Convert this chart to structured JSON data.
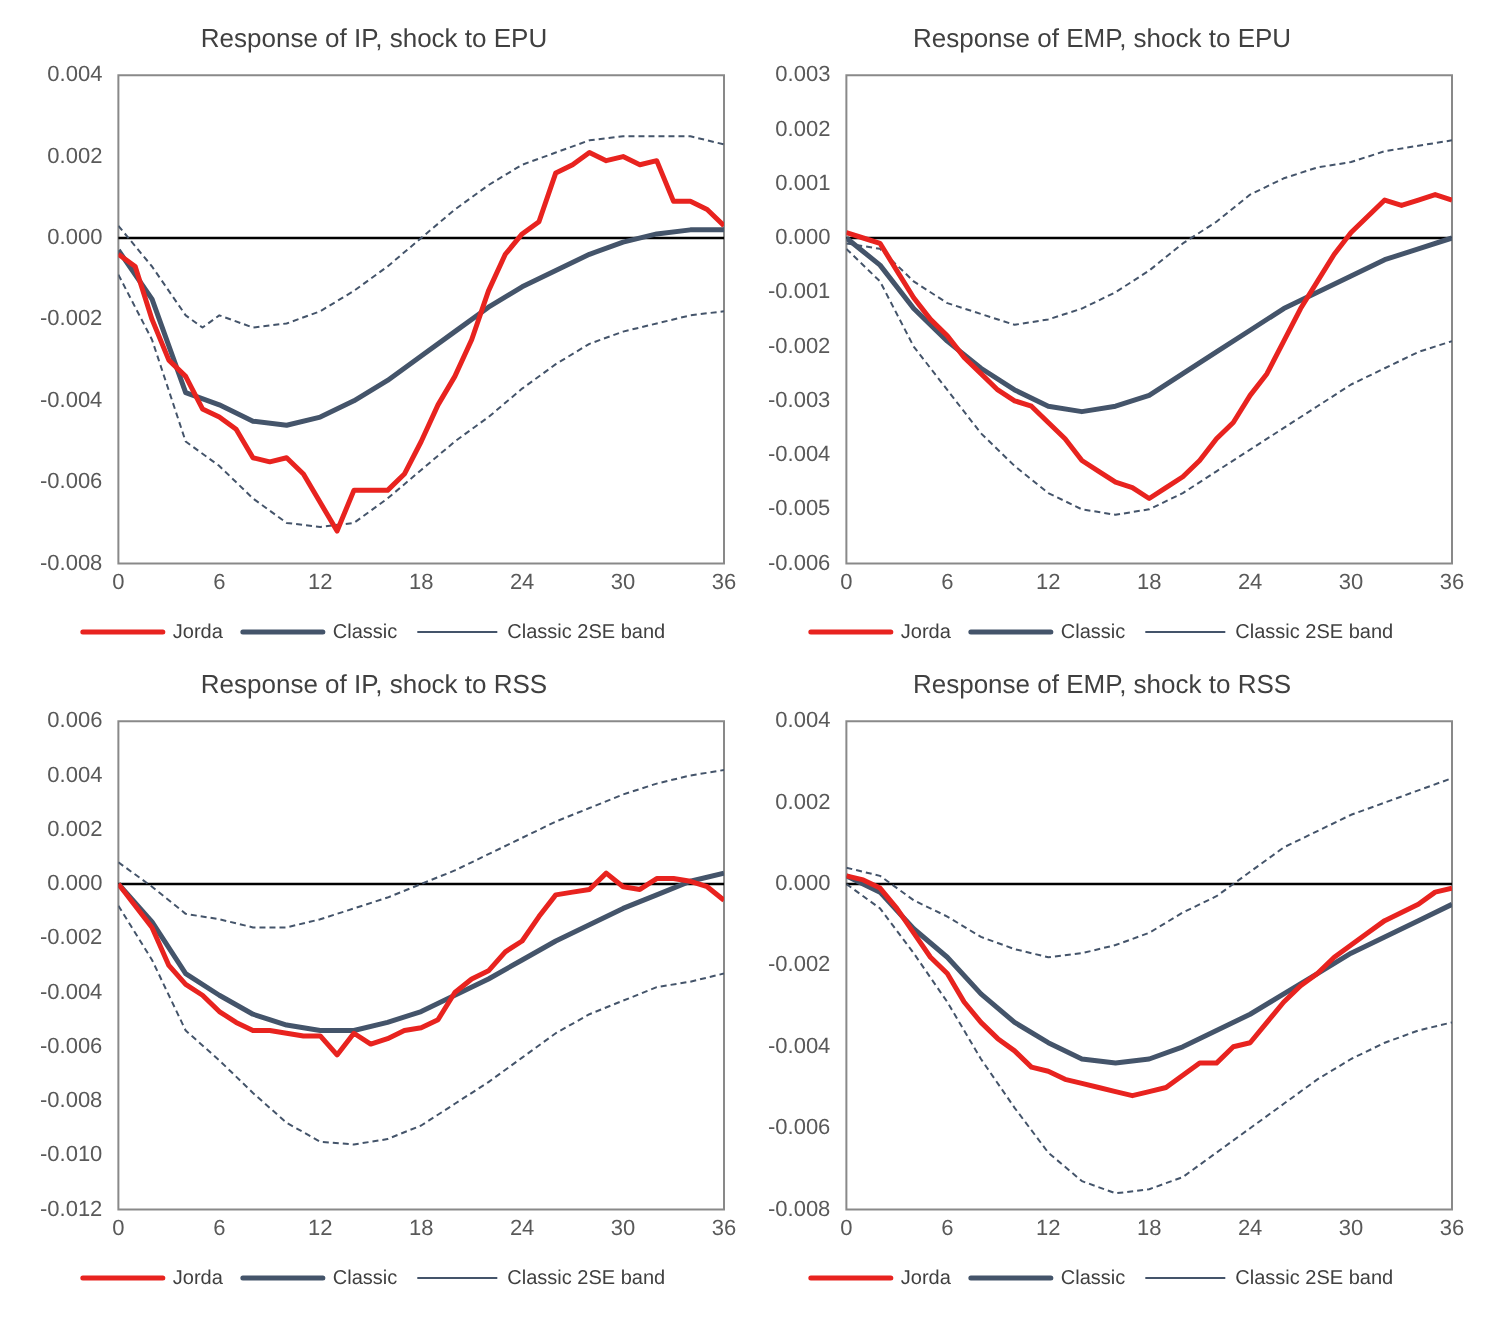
{
  "chart_data": [
    {
      "type": "line",
      "title": "Response of IP, shock to EPU",
      "xlim": [
        0,
        36
      ],
      "xticks": [
        0,
        6,
        12,
        18,
        24,
        30,
        36
      ],
      "ylim": [
        -0.008,
        0.004
      ],
      "yticks": [
        {
          "value": -0.008,
          "label": "-0.008"
        },
        {
          "value": -0.006,
          "label": "-0.006"
        },
        {
          "value": -0.004,
          "label": "-0.004"
        },
        {
          "value": -0.002,
          "label": "-0.002"
        },
        {
          "value": 0,
          "label": "0.000"
        },
        {
          "value": 0.002,
          "label": "0.002"
        },
        {
          "value": 0.004,
          "label": "0.004"
        }
      ],
      "legend": "bottom",
      "grid": false,
      "ref_lines": [
        {
          "axis": "y",
          "value": 0,
          "color": "#000000"
        }
      ],
      "series": [
        {
          "name": "Jorda",
          "color": "#e8231f",
          "line_style": "solid",
          "x": [
            0,
            1,
            2,
            3,
            4,
            5,
            6,
            7,
            8,
            9,
            10,
            11,
            12,
            13,
            14,
            15,
            16,
            17,
            18,
            19,
            20,
            21,
            22,
            23,
            24,
            25,
            26,
            27,
            28,
            29,
            30,
            31,
            32,
            33,
            34,
            35,
            36
          ],
          "values": [
            -0.0004,
            -0.0007,
            -0.002,
            -0.003,
            -0.0034,
            -0.0042,
            -0.0044,
            -0.0047,
            -0.0054,
            -0.0055,
            -0.0054,
            -0.0058,
            -0.0065,
            -0.0072,
            -0.0062,
            -0.0062,
            -0.0062,
            -0.0058,
            -0.005,
            -0.0041,
            -0.0034,
            -0.0025,
            -0.0013,
            -0.0004,
            0.0001,
            0.0004,
            0.0016,
            0.0018,
            0.0021,
            0.0019,
            0.002,
            0.0018,
            0.0019,
            0.0009,
            0.0009,
            0.0007,
            0.0003
          ]
        },
        {
          "name": "Classic",
          "color": "#44546a",
          "line_style": "solid",
          "x": [
            0,
            2,
            4,
            6,
            8,
            10,
            12,
            14,
            16,
            18,
            20,
            22,
            24,
            26,
            28,
            30,
            32,
            34,
            36
          ],
          "values": [
            -0.0003,
            -0.0015,
            -0.0038,
            -0.0041,
            -0.0045,
            -0.0046,
            -0.0044,
            -0.004,
            -0.0035,
            -0.0029,
            -0.0023,
            -0.0017,
            -0.0012,
            -0.0008,
            -0.0004,
            -0.0001,
            0.0001,
            0.0002,
            0.0002
          ]
        },
        {
          "name": "Classic 2SE band",
          "color": "#44546a",
          "line_style": "dashed",
          "x": [
            0,
            2,
            4,
            5,
            6,
            8,
            10,
            12,
            14,
            16,
            18,
            20,
            22,
            24,
            26,
            28,
            30,
            32,
            34,
            36
          ],
          "values": [
            0.0003,
            -0.0007,
            -0.0019,
            -0.0022,
            -0.0019,
            -0.0022,
            -0.0021,
            -0.0018,
            -0.0013,
            -0.0007,
            0,
            0.0007,
            0.0013,
            0.0018,
            0.0021,
            0.0024,
            0.0025,
            0.0025,
            0.0025,
            0.0023
          ]
        },
        {
          "color": "#44546a",
          "line_style": "dashed",
          "x": [
            0,
            2,
            4,
            6,
            8,
            10,
            12,
            14,
            16,
            18,
            20,
            22,
            24,
            26,
            28,
            30,
            32,
            34,
            36
          ],
          "values": [
            -0.0009,
            -0.0025,
            -0.005,
            -0.0056,
            -0.0064,
            -0.007,
            -0.0071,
            -0.007,
            -0.0064,
            -0.0057,
            -0.005,
            -0.0044,
            -0.0037,
            -0.0031,
            -0.0026,
            -0.0023,
            -0.0021,
            -0.0019,
            -0.0018
          ]
        }
      ]
    },
    {
      "type": "line",
      "title": "Response of EMP, shock to EPU",
      "xlim": [
        0,
        36
      ],
      "xticks": [
        0,
        6,
        12,
        18,
        24,
        30,
        36
      ],
      "ylim": [
        -0.006,
        0.003
      ],
      "yticks": [
        {
          "value": -0.006,
          "label": "-0.006"
        },
        {
          "value": -0.005,
          "label": "-0.005"
        },
        {
          "value": -0.004,
          "label": "-0.004"
        },
        {
          "value": -0.003,
          "label": "-0.003"
        },
        {
          "value": -0.002,
          "label": "-0.002"
        },
        {
          "value": -0.001,
          "label": "-0.001"
        },
        {
          "value": 0,
          "label": "0.000"
        },
        {
          "value": 0.001,
          "label": "0.001"
        },
        {
          "value": 0.002,
          "label": "0.002"
        },
        {
          "value": 0.003,
          "label": "0.003"
        }
      ],
      "legend": "bottom",
      "grid": false,
      "ref_lines": [
        {
          "axis": "y",
          "value": 0,
          "color": "#000000"
        }
      ],
      "series": [
        {
          "name": "Jorda",
          "color": "#e8231f",
          "line_style": "solid",
          "x": [
            0,
            1,
            2,
            3,
            4,
            5,
            6,
            7,
            8,
            9,
            10,
            11,
            12,
            13,
            14,
            15,
            16,
            17,
            18,
            19,
            20,
            21,
            22,
            23,
            24,
            25,
            26,
            27,
            28,
            29,
            30,
            31,
            32,
            33,
            34,
            35,
            36
          ],
          "values": [
            0.0001,
            0,
            -0.0001,
            -0.0006,
            -0.0011,
            -0.0015,
            -0.0018,
            -0.0022,
            -0.0025,
            -0.0028,
            -0.003,
            -0.0031,
            -0.0034,
            -0.0037,
            -0.0041,
            -0.0043,
            -0.0045,
            -0.0046,
            -0.0048,
            -0.0046,
            -0.0044,
            -0.0041,
            -0.0037,
            -0.0034,
            -0.0029,
            -0.0025,
            -0.0019,
            -0.0013,
            -0.0008,
            -0.0003,
            0.0001,
            0.0004,
            0.0007,
            0.0006,
            0.0007,
            0.0008,
            0.0007
          ]
        },
        {
          "name": "Classic",
          "color": "#44546a",
          "line_style": "solid",
          "x": [
            0,
            2,
            4,
            6,
            8,
            10,
            12,
            14,
            16,
            18,
            20,
            22,
            24,
            26,
            28,
            30,
            32,
            34,
            36
          ],
          "values": [
            0,
            -0.0005,
            -0.0013,
            -0.0019,
            -0.0024,
            -0.0028,
            -0.0031,
            -0.0032,
            -0.0031,
            -0.0029,
            -0.0025,
            -0.0021,
            -0.0017,
            -0.0013,
            -0.001,
            -0.0007,
            -0.0004,
            -0.0002,
            0
          ]
        },
        {
          "name": "Classic 2SE band",
          "color": "#44546a",
          "line_style": "dashed",
          "x": [
            0,
            2,
            4,
            6,
            8,
            10,
            12,
            14,
            16,
            18,
            20,
            22,
            24,
            26,
            28,
            30,
            32,
            34,
            36
          ],
          "values": [
            -0.0001,
            -0.0002,
            -0.0008,
            -0.0012,
            -0.0014,
            -0.0016,
            -0.0015,
            -0.0013,
            -0.001,
            -0.0006,
            -0.0001,
            0.0003,
            0.0008,
            0.0011,
            0.0013,
            0.0014,
            0.0016,
            0.0017,
            0.0018
          ]
        },
        {
          "color": "#44546a",
          "line_style": "dashed",
          "x": [
            0,
            2,
            4,
            6,
            8,
            10,
            12,
            14,
            16,
            18,
            20,
            22,
            24,
            26,
            28,
            30,
            32,
            34,
            36
          ],
          "values": [
            -0.0002,
            -0.0008,
            -0.002,
            -0.0028,
            -0.0036,
            -0.0042,
            -0.0047,
            -0.005,
            -0.0051,
            -0.005,
            -0.0047,
            -0.0043,
            -0.0039,
            -0.0035,
            -0.0031,
            -0.0027,
            -0.0024,
            -0.0021,
            -0.0019
          ]
        }
      ]
    },
    {
      "type": "line",
      "title": "Response of IP, shock to RSS",
      "xlim": [
        0,
        36
      ],
      "xticks": [
        0,
        6,
        12,
        18,
        24,
        30,
        36
      ],
      "ylim": [
        -0.012,
        0.006
      ],
      "yticks": [
        {
          "value": -0.012,
          "label": "-0.012"
        },
        {
          "value": -0.01,
          "label": "-0.010"
        },
        {
          "value": -0.008,
          "label": "-0.008"
        },
        {
          "value": -0.006,
          "label": "-0.006"
        },
        {
          "value": -0.004,
          "label": "-0.004"
        },
        {
          "value": -0.002,
          "label": "-0.002"
        },
        {
          "value": 0,
          "label": "0.000"
        },
        {
          "value": 0.002,
          "label": "0.002"
        },
        {
          "value": 0.004,
          "label": "0.004"
        },
        {
          "value": 0.006,
          "label": "0.006"
        }
      ],
      "legend": "bottom",
      "grid": false,
      "ref_lines": [
        {
          "axis": "y",
          "value": 0,
          "color": "#000000"
        }
      ],
      "series": [
        {
          "name": "Jorda",
          "color": "#e8231f",
          "line_style": "solid",
          "x": [
            0,
            1,
            2,
            3,
            4,
            5,
            6,
            7,
            8,
            9,
            10,
            11,
            12,
            13,
            14,
            15,
            16,
            17,
            18,
            19,
            20,
            21,
            22,
            23,
            24,
            25,
            26,
            27,
            28,
            29,
            30,
            31,
            32,
            33,
            34,
            35,
            36
          ],
          "values": [
            0,
            -0.0008,
            -0.0016,
            -0.003,
            -0.0037,
            -0.0041,
            -0.0047,
            -0.0051,
            -0.0054,
            -0.0054,
            -0.0055,
            -0.0056,
            -0.0056,
            -0.0063,
            -0.0055,
            -0.0059,
            -0.0057,
            -0.0054,
            -0.0053,
            -0.005,
            -0.004,
            -0.0035,
            -0.0032,
            -0.0025,
            -0.0021,
            -0.0012,
            -0.0004,
            -0.0003,
            -0.0002,
            0.0004,
            -0.0001,
            -0.0002,
            0.0002,
            0.0002,
            0.0001,
            -0.0001,
            -0.0006
          ]
        },
        {
          "name": "Classic",
          "color": "#44546a",
          "line_style": "solid",
          "x": [
            0,
            2,
            4,
            6,
            8,
            10,
            12,
            14,
            16,
            18,
            20,
            22,
            24,
            26,
            28,
            30,
            32,
            34,
            36
          ],
          "values": [
            0,
            -0.0014,
            -0.0033,
            -0.0041,
            -0.0048,
            -0.0052,
            -0.0054,
            -0.0054,
            -0.0051,
            -0.0047,
            -0.0041,
            -0.0035,
            -0.0028,
            -0.0021,
            -0.0015,
            -0.0009,
            -0.0004,
            0.0001,
            0.0004
          ]
        },
        {
          "name": "Classic 2SE band",
          "color": "#44546a",
          "line_style": "dashed",
          "x": [
            0,
            2,
            4,
            6,
            8,
            10,
            12,
            14,
            16,
            18,
            20,
            22,
            24,
            26,
            28,
            30,
            32,
            34,
            36
          ],
          "values": [
            0.0008,
            -0.0001,
            -0.0011,
            -0.0013,
            -0.0016,
            -0.0016,
            -0.0013,
            -0.0009,
            -0.0005,
            0,
            0.0005,
            0.0011,
            0.0017,
            0.0023,
            0.0028,
            0.0033,
            0.0037,
            0.004,
            0.0042
          ]
        },
        {
          "color": "#44546a",
          "line_style": "dashed",
          "x": [
            0,
            2,
            4,
            6,
            8,
            10,
            12,
            14,
            16,
            18,
            20,
            22,
            24,
            26,
            28,
            30,
            32,
            34,
            36
          ],
          "values": [
            -0.0008,
            -0.0028,
            -0.0054,
            -0.0065,
            -0.0077,
            -0.0088,
            -0.0095,
            -0.0096,
            -0.0094,
            -0.0089,
            -0.0081,
            -0.0073,
            -0.0064,
            -0.0055,
            -0.0048,
            -0.0043,
            -0.0038,
            -0.0036,
            -0.0033
          ]
        }
      ]
    },
    {
      "type": "line",
      "title": "Response of EMP, shock to RSS",
      "xlim": [
        0,
        36
      ],
      "xticks": [
        0,
        6,
        12,
        18,
        24,
        30,
        36
      ],
      "ylim": [
        -0.008,
        0.004
      ],
      "yticks": [
        {
          "value": -0.008,
          "label": "-0.008"
        },
        {
          "value": -0.006,
          "label": "-0.006"
        },
        {
          "value": -0.004,
          "label": "-0.004"
        },
        {
          "value": -0.002,
          "label": "-0.002"
        },
        {
          "value": 0,
          "label": "0.000"
        },
        {
          "value": 0.002,
          "label": "0.002"
        },
        {
          "value": 0.004,
          "label": "0.004"
        }
      ],
      "legend": "bottom",
      "grid": false,
      "ref_lines": [
        {
          "axis": "y",
          "value": 0,
          "color": "#000000"
        }
      ],
      "series": [
        {
          "name": "Jorda",
          "color": "#e8231f",
          "line_style": "solid",
          "x": [
            0,
            1,
            2,
            3,
            4,
            5,
            6,
            7,
            8,
            9,
            10,
            11,
            12,
            13,
            14,
            15,
            16,
            17,
            18,
            19,
            20,
            21,
            22,
            23,
            24,
            25,
            26,
            27,
            28,
            29,
            30,
            31,
            32,
            33,
            34,
            35,
            36
          ],
          "values": [
            0.0002,
            0.0001,
            -0.0001,
            -0.0006,
            -0.0012,
            -0.0018,
            -0.0022,
            -0.0029,
            -0.0034,
            -0.0038,
            -0.0041,
            -0.0045,
            -0.0046,
            -0.0048,
            -0.0049,
            -0.005,
            -0.0051,
            -0.0052,
            -0.0051,
            -0.005,
            -0.0047,
            -0.0044,
            -0.0044,
            -0.004,
            -0.0039,
            -0.0034,
            -0.0029,
            -0.0025,
            -0.0022,
            -0.0018,
            -0.0015,
            -0.0012,
            -0.0009,
            -0.0007,
            -0.0005,
            -0.0002,
            -0.0001
          ]
        },
        {
          "name": "Classic",
          "color": "#44546a",
          "line_style": "solid",
          "x": [
            0,
            2,
            4,
            6,
            8,
            10,
            12,
            14,
            16,
            18,
            20,
            22,
            24,
            26,
            28,
            30,
            32,
            34,
            36
          ],
          "values": [
            0.0002,
            -0.0002,
            -0.0011,
            -0.0018,
            -0.0027,
            -0.0034,
            -0.0039,
            -0.0043,
            -0.0044,
            -0.0043,
            -0.004,
            -0.0036,
            -0.0032,
            -0.0027,
            -0.0022,
            -0.0017,
            -0.0013,
            -0.0009,
            -0.0005
          ]
        },
        {
          "name": "Classic 2SE band",
          "color": "#44546a",
          "line_style": "dashed",
          "x": [
            0,
            2,
            4,
            6,
            8,
            10,
            12,
            14,
            16,
            18,
            20,
            22,
            24,
            26,
            28,
            30,
            32,
            34,
            36
          ],
          "values": [
            0.0004,
            0.0002,
            -0.0004,
            -0.0008,
            -0.0013,
            -0.0016,
            -0.0018,
            -0.0017,
            -0.0015,
            -0.0012,
            -0.0007,
            -0.0003,
            0.0003,
            0.0009,
            0.0013,
            0.0017,
            0.002,
            0.0023,
            0.0026
          ]
        },
        {
          "color": "#44546a",
          "line_style": "dashed",
          "x": [
            0,
            2,
            4,
            6,
            8,
            10,
            12,
            14,
            16,
            18,
            20,
            22,
            24,
            26,
            28,
            30,
            32,
            34,
            36
          ],
          "values": [
            0,
            -0.0006,
            -0.0017,
            -0.0029,
            -0.0043,
            -0.0055,
            -0.0066,
            -0.0073,
            -0.0076,
            -0.0075,
            -0.0072,
            -0.0066,
            -0.006,
            -0.0054,
            -0.0048,
            -0.0043,
            -0.0039,
            -0.0036,
            -0.0034
          ]
        }
      ]
    }
  ]
}
